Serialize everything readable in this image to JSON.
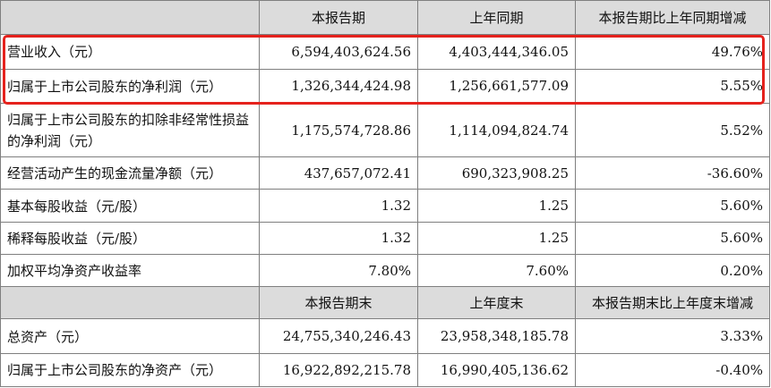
{
  "header": {
    "col1": "本报告期",
    "col2": "上年同期",
    "col3": "本报告期比上年同期增减"
  },
  "rows": [
    {
      "label": "营业收入（元）",
      "current": "6,594,403,624.56",
      "prior": "4,403,444,346.05",
      "change": "49.76%"
    },
    {
      "label": "归属于上市公司股东的净利润（元）",
      "current": "1,326,344,424.98",
      "prior": "1,256,661,577.09",
      "change": "5.55%"
    },
    {
      "label": "归属于上市公司股东的扣除非经常性损益的净利润（元）",
      "current": "1,175,574,728.86",
      "prior": "1,114,094,824.74",
      "change": "5.52%"
    },
    {
      "label": "经营活动产生的现金流量净额（元）",
      "current": "437,657,072.41",
      "prior": "690,323,908.25",
      "change": "-36.60%"
    },
    {
      "label": "基本每股收益（元/股）",
      "current": "1.32",
      "prior": "1.25",
      "change": "5.60%"
    },
    {
      "label": "稀释每股收益（元/股）",
      "current": "1.32",
      "prior": "1.25",
      "change": "5.60%"
    },
    {
      "label": "加权平均净资产收益率",
      "current": "7.80%",
      "prior": "7.60%",
      "change": "0.20%"
    }
  ],
  "header2": {
    "col1": "本报告期末",
    "col2": "上年度末",
    "col3": "本报告期末比上年度末增减"
  },
  "rows2": [
    {
      "label": "总资产（元）",
      "current": "24,755,340,246.43",
      "prior": "23,958,348,185.78",
      "change": "3.33%"
    },
    {
      "label": "归属于上市公司股东的净资产（元）",
      "current": "16,922,892,215.78",
      "prior": "16,990,405,136.62",
      "change": "-0.40%"
    }
  ],
  "highlight": {
    "color": "#e5221d"
  }
}
